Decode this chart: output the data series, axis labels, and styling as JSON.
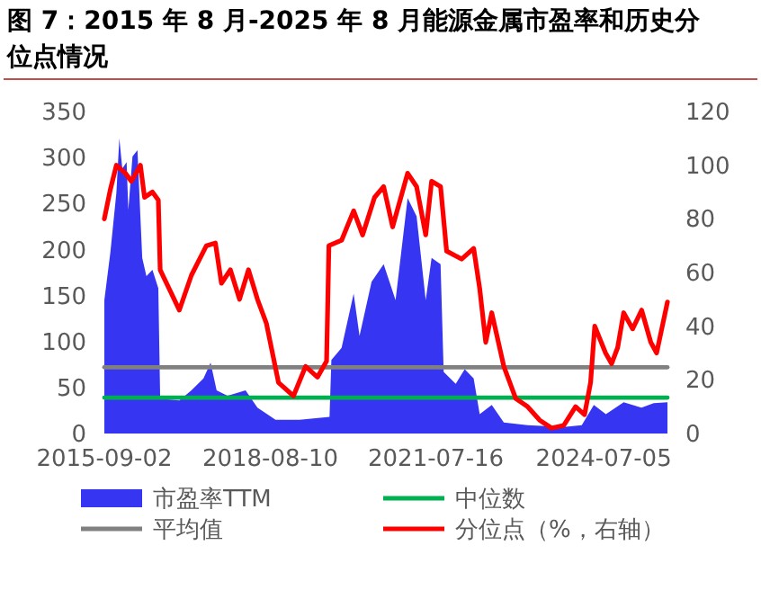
{
  "chart_data": {
    "type": "line",
    "title": "图 7：2015 年 8 月-2025 年 8 月能源金属市盈率和历史分位点情况",
    "xlim": [
      "2015-09-02",
      "2025-08-21"
    ],
    "xticks": [
      "2015-09-02",
      "2018-08-10",
      "2021-07-16",
      "2024-07-05"
    ],
    "ylim": [
      0,
      350
    ],
    "yticks": [
      0,
      50,
      100,
      150,
      200,
      250,
      300,
      350
    ],
    "y2lim": [
      0,
      120
    ],
    "y2ticks": [
      0,
      20,
      40,
      60,
      80,
      100,
      120
    ],
    "grid": false,
    "legend": "bottom",
    "series": [
      {
        "name": "市盈率TTM",
        "type": "area",
        "color": "#3636f2",
        "x": [
          "2015-09-02",
          "2015-10-11",
          "2015-11-19",
          "2015-12-08",
          "2015-12-27",
          "2016-01-24",
          "2016-02-04",
          "2016-03-02",
          "2016-04-03",
          "2016-05-04",
          "2016-05-31",
          "2016-07-09",
          "2016-08-16",
          "2016-08-28",
          "2016-12-30",
          "2017-03-18",
          "2017-06-04",
          "2017-07-20",
          "2017-08-28",
          "2017-11-06",
          "2018-03-03",
          "2018-05-19",
          "2018-09-13",
          "2019-02-15",
          "2019-08-28",
          "2019-09-09",
          "2019-11-14",
          "2020-01-31",
          "2020-03-09",
          "2020-05-26",
          "2020-08-12",
          "2020-10-28",
          "2021-01-14",
          "2021-03-13",
          "2021-05-11",
          "2021-06-18",
          "2021-08-15",
          "2021-09-04",
          "2021-11-21",
          "2022-01-18",
          "2022-03-17",
          "2022-04-25",
          "2022-07-12",
          "2022-09-28",
          "2023-03-01",
          "2023-10-20",
          "2024-02-14",
          "2024-05-02",
          "2024-07-19",
          "2024-11-11",
          "2025-03-06",
          "2025-05-24",
          "2025-08-21"
        ],
        "values": [
          145,
          197,
          262,
          321,
          288,
          295,
          243,
          301,
          308,
          191,
          171,
          178,
          158,
          38,
          36,
          47,
          60,
          77,
          47,
          41,
          47,
          28,
          15,
          15,
          18,
          80,
          93,
          152,
          106,
          165,
          184,
          145,
          256,
          236,
          145,
          191,
          184,
          67,
          54,
          70,
          60,
          21,
          31,
          12,
          9,
          7,
          9,
          31,
          21,
          34,
          28,
          33,
          34
        ]
      },
      {
        "name": "中位数",
        "color": "#00b050",
        "x": [
          "2015-09-02",
          "2025-08-21"
        ],
        "values": [
          39,
          39
        ]
      },
      {
        "name": "平均值",
        "color": "#808080",
        "x": [
          "2015-09-02",
          "2025-08-21"
        ],
        "values": [
          72,
          72
        ]
      },
      {
        "name": "分位点（%，右轴）",
        "axis": "y2",
        "color": "#ff0000",
        "x": [
          "2015-09-02",
          "2015-10-11",
          "2015-11-19",
          "2016-01-16",
          "2016-02-24",
          "2016-04-22",
          "2016-05-19",
          "2016-07-09",
          "2016-08-16",
          "2016-08-28",
          "2016-11-02",
          "2016-12-30",
          "2017-03-18",
          "2017-06-23",
          "2017-08-20",
          "2017-09-28",
          "2017-11-25",
          "2018-01-23",
          "2018-03-22",
          "2018-05-19",
          "2018-07-16",
          "2018-10-02",
          "2019-01-07",
          "2019-03-26",
          "2019-06-11",
          "2019-08-09",
          "2019-08-24",
          "2019-11-14",
          "2020-01-31",
          "2020-03-29",
          "2020-06-14",
          "2020-08-12",
          "2020-10-09",
          "2021-01-14",
          "2021-03-13",
          "2021-05-11",
          "2021-06-18",
          "2021-08-15",
          "2021-09-23",
          "2021-12-29",
          "2022-03-17",
          "2022-04-25",
          "2022-06-03",
          "2022-07-12",
          "2022-09-28",
          "2022-12-14",
          "2023-03-01",
          "2023-05-17",
          "2023-08-03",
          "2023-10-20",
          "2024-01-05",
          "2024-03-03",
          "2024-04-11",
          "2024-05-08",
          "2024-07-17",
          "2024-08-25",
          "2024-10-03",
          "2024-11-11",
          "2025-01-08",
          "2025-03-07",
          "2025-05-05",
          "2025-06-12",
          "2025-08-10",
          "2025-08-21"
        ],
        "values": [
          80,
          91,
          100,
          97,
          94,
          100,
          88,
          90,
          87,
          61,
          53,
          46,
          59,
          70,
          71,
          56,
          61,
          50,
          61,
          50,
          41,
          19,
          14,
          25,
          21,
          27,
          70,
          72,
          83,
          74,
          88,
          92,
          77,
          97,
          92,
          74,
          94,
          92,
          68,
          65,
          69,
          54,
          34,
          45,
          25,
          13,
          10,
          5,
          2,
          3,
          10,
          7,
          19,
          40,
          30,
          26,
          32,
          45,
          39,
          46,
          34,
          30,
          46,
          49
        ]
      }
    ]
  }
}
